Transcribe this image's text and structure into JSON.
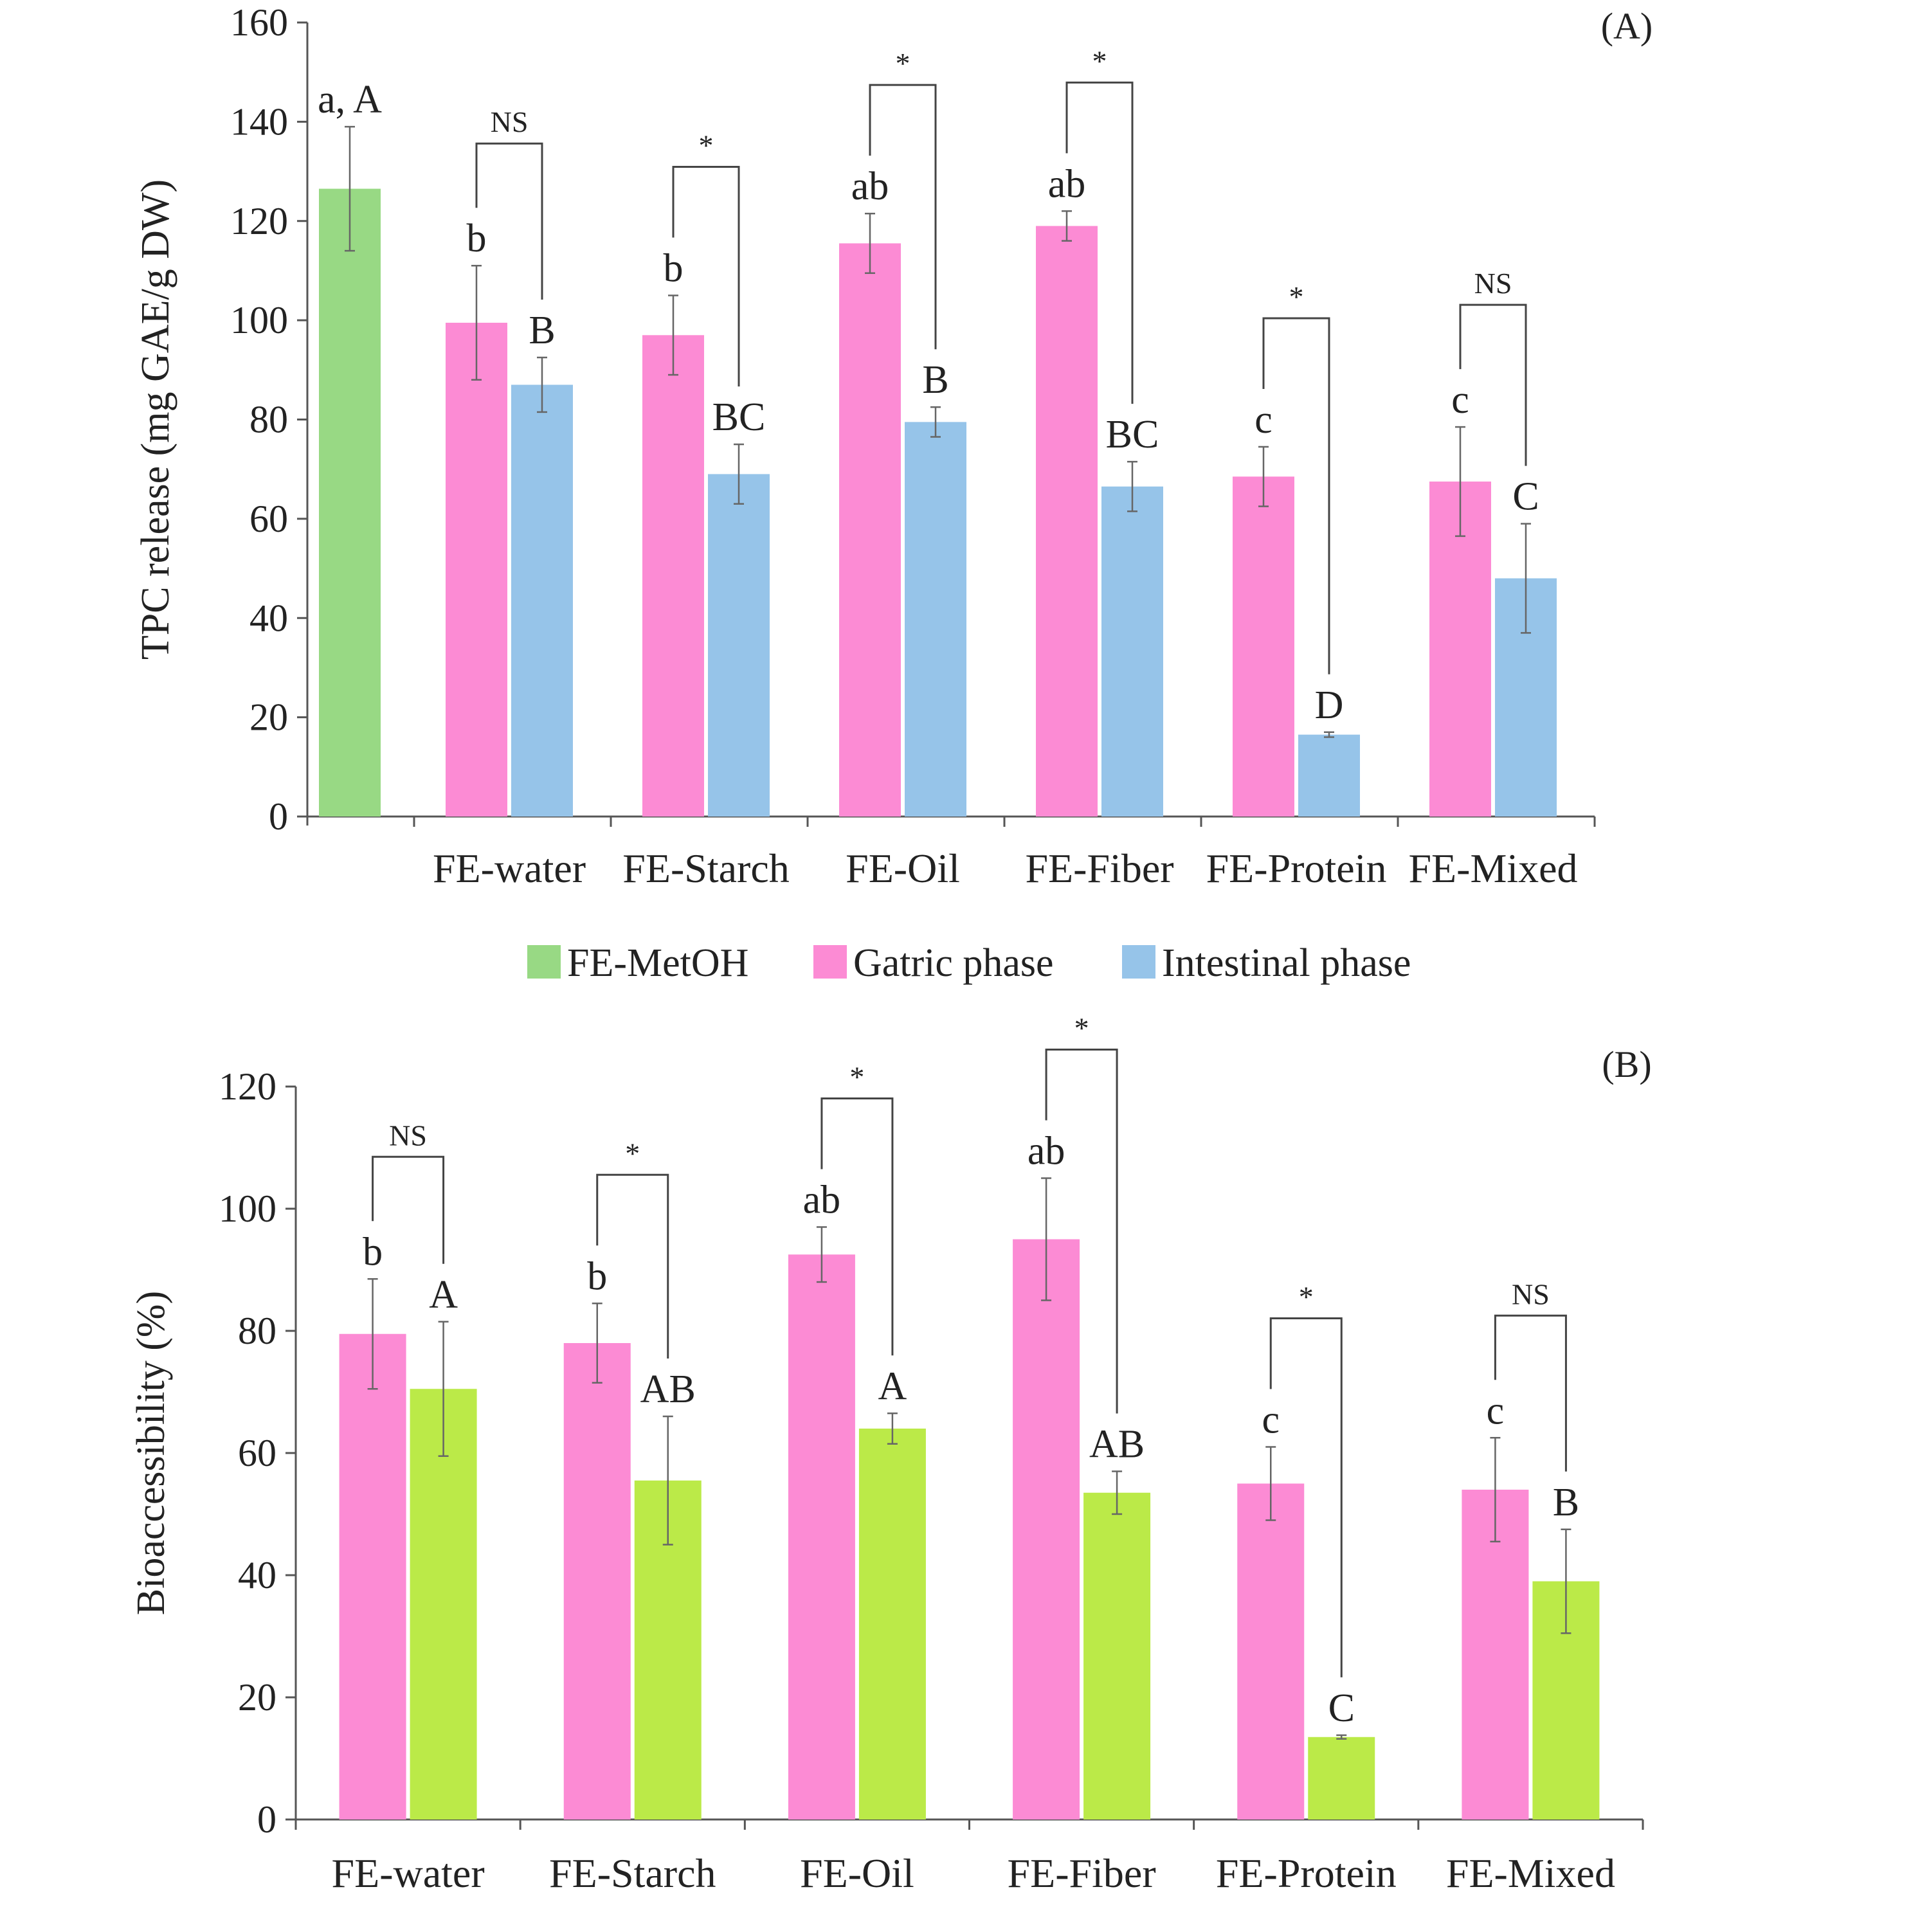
{
  "chart_data": [
    {
      "type": "bar",
      "panel_label": "(A)",
      "title": "",
      "xlabel": "",
      "ylabel": "TPC release (mg GAE/g DW)",
      "ylim": [
        0,
        160
      ],
      "ytick_step": 20,
      "categories": [
        "FE-water",
        "FE-Starch",
        "FE-Oil",
        "FE-Fiber",
        "FE-Protein",
        "FE-Mixed"
      ],
      "reference_bar": {
        "name": "FE-MetOH",
        "value": 126.5,
        "error": 12.5,
        "letter": "a, A",
        "color": "#98D984"
      },
      "series": [
        {
          "name": "Gatric phase",
          "color": "#FC8BD4",
          "values": [
            99.5,
            97.0,
            115.5,
            119.0,
            68.5,
            67.5
          ],
          "errors": [
            11.5,
            8.0,
            6.0,
            3.0,
            6.0,
            11.0
          ],
          "letters": [
            "b",
            "b",
            "ab",
            "ab",
            "c",
            "c"
          ]
        },
        {
          "name": "Intestinal phase",
          "color": "#96C4E9",
          "values": [
            87.0,
            69.0,
            79.5,
            66.5,
            16.5,
            48.0
          ],
          "errors": [
            5.5,
            6.0,
            3.0,
            5.0,
            0.5,
            11.0
          ],
          "letters": [
            "B",
            "BC",
            "B",
            "BC",
            "D",
            "C"
          ]
        }
      ],
      "significance": [
        "NS",
        "*",
        "*",
        "*",
        "*",
        "NS"
      ],
      "legend": {
        "placement": "bottom",
        "items": [
          {
            "label": "FE-MetOH",
            "color": "#98D984"
          },
          {
            "label": "Gatric phase",
            "color": "#FC8BD4"
          },
          {
            "label": "Intestinal phase",
            "color": "#96C4E9"
          }
        ]
      }
    },
    {
      "type": "bar",
      "panel_label": "(B)",
      "title": "",
      "xlabel": "",
      "ylabel": "Bioaccessibility (%)",
      "ylim": [
        0,
        120
      ],
      "ytick_step": 20,
      "categories": [
        "FE-water",
        "FE-Starch",
        "FE-Oil",
        "FE-Fiber",
        "FE-Protein",
        "FE-Mixed"
      ],
      "series": [
        {
          "color": "#FC8BD4",
          "values": [
            79.5,
            78.0,
            92.5,
            95.0,
            55.0,
            54.0
          ],
          "errors": [
            9.0,
            6.5,
            4.5,
            10.0,
            6.0,
            8.5
          ],
          "letters": [
            "b",
            "b",
            "ab",
            "ab",
            "c",
            "c"
          ]
        },
        {
          "color": "#BBEA48",
          "values": [
            70.5,
            55.5,
            64.0,
            53.5,
            13.5,
            39.0
          ],
          "errors": [
            11.0,
            10.5,
            2.5,
            3.5,
            0.3,
            8.5
          ],
          "letters": [
            "A",
            "AB",
            "A",
            "AB",
            "C",
            "B"
          ]
        }
      ],
      "significance": [
        "NS",
        "*",
        "*",
        "*",
        "*",
        "NS"
      ]
    }
  ]
}
